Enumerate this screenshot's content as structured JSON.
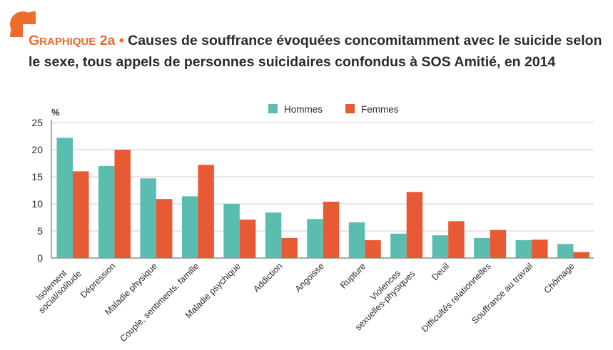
{
  "header": {
    "label_first": "G",
    "label_rest": "RAPHIQUE",
    "label_number": "2a",
    "bullet": "•",
    "text": "Causes de souffrance évoquées concomitamment avec le suicide selon le sexe, tous appels de personnes suicidaires confondus à SOS Amitié, en 2014"
  },
  "colors": {
    "hommes": "#5bbcb0",
    "femmes": "#e85a34",
    "accent": "#ec6b2d",
    "grid": "#cfcfcf",
    "axis": "#555555"
  },
  "chart_data": {
    "type": "bar",
    "title": "Causes de souffrance évoquées concomitamment avec le suicide selon le sexe, tous appels de personnes suicidaires confondus à SOS Amitié, en 2014",
    "ylabel": "%",
    "xlabel": "",
    "ylim": [
      0,
      25
    ],
    "yticks": [
      0,
      5,
      10,
      15,
      20,
      25
    ],
    "grid": true,
    "legend_position": "top-center",
    "categories": [
      [
        "Isolement",
        "social/solitude"
      ],
      [
        "Dépression"
      ],
      [
        "Maladie physique"
      ],
      [
        "Couple, sentiments, famille"
      ],
      [
        "Maladie psychique"
      ],
      [
        "Addiction"
      ],
      [
        "Angoisse"
      ],
      [
        "Rupture"
      ],
      [
        "Violences",
        "sexuelles-physiques"
      ],
      [
        "Deuil"
      ],
      [
        "Difficultés relationnelles"
      ],
      [
        "Souffrance au travail"
      ],
      [
        "Chômage"
      ]
    ],
    "series": [
      {
        "name": "Hommes",
        "color": "#5bbcb0",
        "values": [
          22.2,
          17.0,
          14.7,
          11.4,
          10.0,
          8.4,
          7.2,
          6.6,
          4.5,
          4.2,
          3.7,
          3.3,
          2.6
        ]
      },
      {
        "name": "Femmes",
        "color": "#e85a34",
        "values": [
          16.0,
          20.0,
          10.9,
          17.2,
          7.1,
          3.7,
          10.4,
          3.3,
          12.2,
          6.8,
          5.2,
          3.4,
          1.1
        ]
      }
    ]
  }
}
